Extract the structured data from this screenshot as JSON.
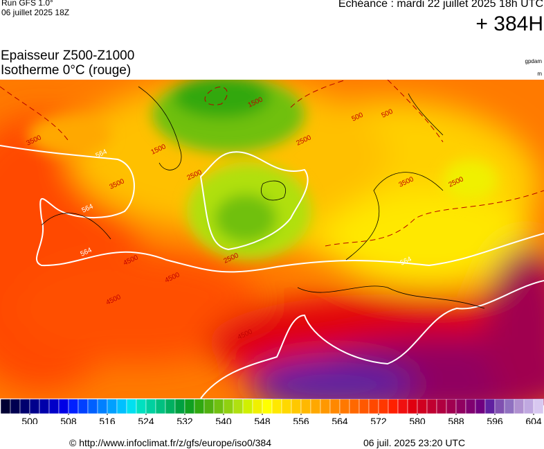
{
  "header": {
    "run": "Run GFS 1.0°",
    "run_date": "06 juillet 2025 18Z",
    "valid": "Echéance : mardi 22 juillet 2025 18h UTC",
    "lead": "+ 384H",
    "title_1": "Epaisseur Z500-Z1000",
    "title_2": "Isotherme 0°C (rouge)",
    "unit_1": "gpdam",
    "unit_2": "m"
  },
  "map": {
    "contour_labels": [
      "564",
      "564",
      "564",
      "564",
      "3500",
      "3500",
      "2500",
      "2500",
      "1500",
      "1500",
      "500",
      "500",
      "4500",
      "4500",
      "4500",
      "3500",
      "2500",
      "4500",
      "2500"
    ]
  },
  "colorbar": {
    "lim": [
      494,
      606
    ],
    "ticks": [
      500,
      508,
      516,
      524,
      532,
      540,
      548,
      556,
      564,
      572,
      580,
      588,
      596,
      604
    ],
    "colors": [
      "#000033",
      "#000050",
      "#00006e",
      "#00008c",
      "#0000aa",
      "#0000c8",
      "#0000e6",
      "#0020ff",
      "#0040ff",
      "#0060ff",
      "#0080ff",
      "#00a0ff",
      "#00c0ff",
      "#00e0f0",
      "#00e0c0",
      "#00d0a0",
      "#00c080",
      "#00b060",
      "#00a040",
      "#10a020",
      "#30a810",
      "#50b010",
      "#70c010",
      "#90d010",
      "#b0e010",
      "#d0f000",
      "#f0f000",
      "#ffff00",
      "#ffe800",
      "#ffd800",
      "#ffc800",
      "#ffb800",
      "#ffa800",
      "#ff9800",
      "#ff8800",
      "#ff7800",
      "#ff6800",
      "#ff5800",
      "#ff4800",
      "#ff3800",
      "#ff2000",
      "#f01010",
      "#e00010",
      "#d00020",
      "#c00030",
      "#b00040",
      "#a00050",
      "#900060",
      "#800070",
      "#700080",
      "#6020a0",
      "#8050b0",
      "#9070c0",
      "#b090d0",
      "#c0a8e0",
      "#d8c8f0"
    ]
  },
  "footer": {
    "source": "© http://www.infoclimat.fr/z/gfs/europe/iso0/384",
    "generated": "06 juil. 2025 23:20 UTC"
  }
}
